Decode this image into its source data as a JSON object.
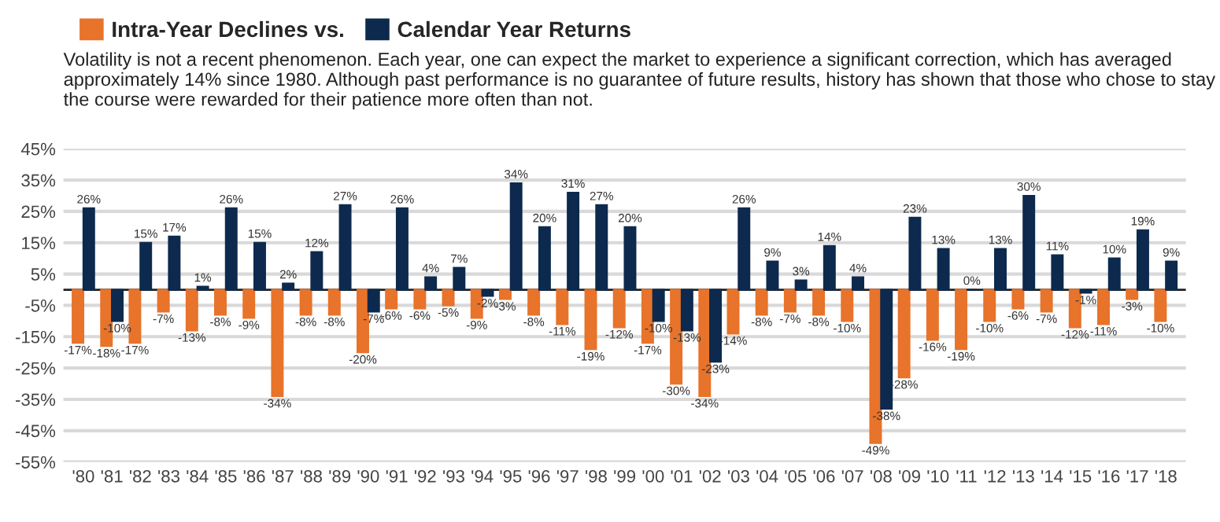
{
  "chart_data": {
    "type": "bar",
    "subtitle": "Volatility is not a recent phenomenon. Each year, one can expect the market to experience a significant correction, which has averaged approximately 14% since 1980. Although past performance is no guarantee of future results, history has shown that those who chose to stay the course were rewarded for their patience more often than not.",
    "categories": [
      "'80",
      "'81",
      "'82",
      "'83",
      "'84",
      "'85",
      "'86",
      "'87",
      "'88",
      "'89",
      "'90",
      "'91",
      "'92",
      "'93",
      "'94",
      "'95",
      "'96",
      "'97",
      "'98",
      "'99",
      "'00",
      "'01",
      "'02",
      "'03",
      "'04",
      "'05",
      "'06",
      "'07",
      "'08",
      "'09",
      "'10",
      "'11",
      "'12",
      "'13",
      "'14",
      "'15",
      "'16",
      "'17",
      "'18"
    ],
    "series": [
      {
        "name": "Intra-Year Declines vs.",
        "color": "#e8732a",
        "values": [
          -17,
          -18,
          -17,
          -7,
          -13,
          -8,
          -9,
          -34,
          -8,
          -8,
          -20,
          -6,
          -6,
          -5,
          -9,
          -3,
          -8,
          -11,
          -19,
          -12,
          -17,
          -30,
          -34,
          -14,
          -8,
          -7,
          -8,
          -10,
          -49,
          -28,
          -16,
          -19,
          -10,
          -6,
          -7,
          -12,
          -11,
          -3,
          -10
        ],
        "value_labels": [
          "-17%",
          "-18%",
          "-17%",
          "-7%",
          "-13%",
          "-8%",
          "-9%",
          "-34%",
          "-8%",
          "-8%",
          "-20%",
          "-6%",
          "-6%",
          "-5%",
          "-9%",
          "-3%",
          "-8%",
          "-11%",
          "-19%",
          "-12%",
          "-17%",
          "-30%",
          "-34%",
          "-14%",
          "-8%",
          "-7%",
          "-8%",
          "-10%",
          "-49%",
          "-28%",
          "-16%",
          "-19%",
          "-10%",
          "-6%",
          "-7%",
          "-12%",
          "-11%",
          "-3%",
          "-10%"
        ]
      },
      {
        "name": "Calendar Year Returns",
        "color": "#0d2a4e",
        "values": [
          26,
          -10,
          15,
          17,
          1,
          26,
          15,
          2,
          12,
          27,
          -7,
          26,
          4,
          7,
          -2,
          34,
          20,
          31,
          27,
          20,
          -10,
          -13,
          -23,
          26,
          9,
          3,
          14,
          4,
          -38,
          23,
          13,
          0,
          13,
          30,
          11,
          -1,
          10,
          19,
          9
        ],
        "value_labels": [
          "26%",
          "-10%",
          "15%",
          "17%",
          "1%",
          "26%",
          "15%",
          "2%",
          "12%",
          "27%",
          "-7%",
          "26%",
          "4%",
          "7%",
          "-2%",
          "34%",
          "20%",
          "31%",
          "27%",
          "20%",
          "-10%",
          "-13%",
          "-23%",
          "26%",
          "9%",
          "3%",
          "14%",
          "4%",
          "-38%",
          "23%",
          "13%",
          "0%",
          "13%",
          "30%",
          "11%",
          "-1%",
          "10%",
          "19%",
          "9%"
        ]
      }
    ],
    "ylim": [
      -55,
      45
    ],
    "yticks": [
      {
        "value": 45,
        "label": "45%"
      },
      {
        "value": 35,
        "label": "35%"
      },
      {
        "value": 25,
        "label": "25%"
      },
      {
        "value": 15,
        "label": "15%"
      },
      {
        "value": 5,
        "label": "5%"
      },
      {
        "value": -5,
        "label": "-5%"
      },
      {
        "value": -15,
        "label": "-15%"
      },
      {
        "value": -25,
        "label": "-25%"
      },
      {
        "value": -35,
        "label": "-35%"
      },
      {
        "value": -45,
        "label": "-45%"
      },
      {
        "value": -55,
        "label": "-55%"
      }
    ],
    "ref_lines": [
      {
        "axis": "y",
        "value": 0,
        "color": "#222222"
      }
    ],
    "grid": "y",
    "legend": "top left"
  }
}
